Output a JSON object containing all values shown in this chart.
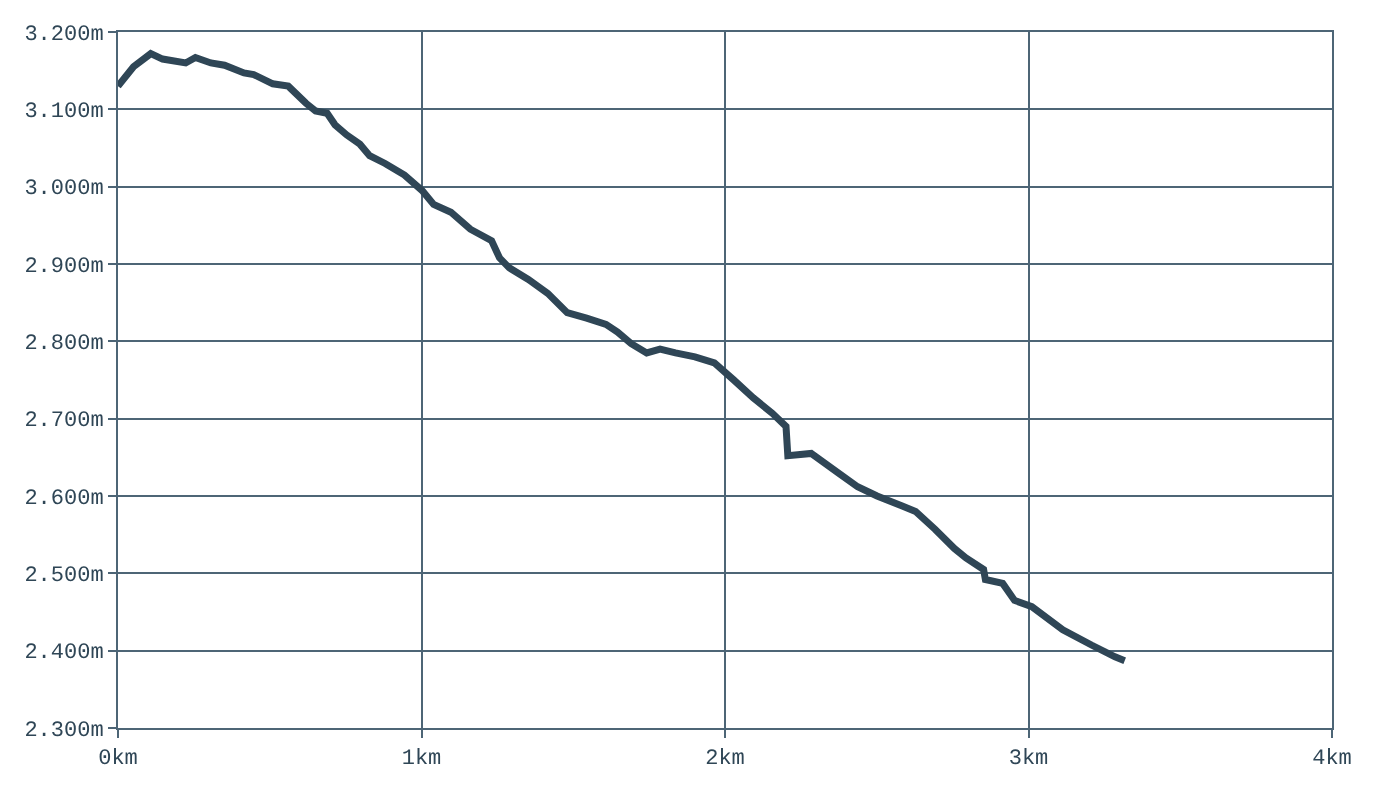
{
  "chart_data": {
    "type": "line",
    "grid": true,
    "marker": "none",
    "line_style": "solid",
    "xlim": [
      0,
      4
    ],
    "xticks": [
      {
        "value": 0,
        "label": "0km"
      },
      {
        "value": 1,
        "label": "1km"
      },
      {
        "value": 2,
        "label": "2km"
      },
      {
        "value": 3,
        "label": "3km"
      },
      {
        "value": 4,
        "label": "4km"
      }
    ],
    "ylim": [
      2.3,
      3.2
    ],
    "yticks": [
      {
        "value": 2.3,
        "label": "2.300m"
      },
      {
        "value": 2.4,
        "label": "2.400m"
      },
      {
        "value": 2.5,
        "label": "2.500m"
      },
      {
        "value": 2.6,
        "label": "2.600m"
      },
      {
        "value": 2.7,
        "label": "2.700m"
      },
      {
        "value": 2.8,
        "label": "2.800m"
      },
      {
        "value": 2.9,
        "label": "2.900m"
      },
      {
        "value": 3.0,
        "label": "3.000m"
      },
      {
        "value": 3.1,
        "label": "3.100m"
      },
      {
        "value": 3.2,
        "label": "3.200m"
      }
    ],
    "x": [
      0,
      0.051,
      0.108,
      0.147,
      0.223,
      0.255,
      0.306,
      0.351,
      0.415,
      0.447,
      0.51,
      0.561,
      0.619,
      0.651,
      0.689,
      0.715,
      0.753,
      0.797,
      0.829,
      0.88,
      0.944,
      1.002,
      1.04,
      1.097,
      1.161,
      1.231,
      1.257,
      1.289,
      1.352,
      1.416,
      1.48,
      1.544,
      1.608,
      1.646,
      1.691,
      1.742,
      1.786,
      1.837,
      1.901,
      1.965,
      2.029,
      2.093,
      2.156,
      2.201,
      2.207,
      2.284,
      2.373,
      2.437,
      2.501,
      2.584,
      2.628,
      2.692,
      2.756,
      2.794,
      2.852,
      2.858,
      2.915,
      2.954,
      3.011,
      3.113,
      3.209,
      3.285,
      3.317
    ],
    "series": [
      {
        "color": "#2f4656",
        "values": [
          3.13,
          3.155,
          3.172,
          3.165,
          3.16,
          3.167,
          3.16,
          3.157,
          3.147,
          3.145,
          3.133,
          3.13,
          3.108,
          3.098,
          3.095,
          3.08,
          3.067,
          3.055,
          3.04,
          3.03,
          3.015,
          2.995,
          2.977,
          2.967,
          2.945,
          2.93,
          2.908,
          2.895,
          2.88,
          2.862,
          2.837,
          2.83,
          2.822,
          2.812,
          2.797,
          2.785,
          2.79,
          2.785,
          2.78,
          2.772,
          2.75,
          2.727,
          2.707,
          2.69,
          2.652,
          2.655,
          2.63,
          2.612,
          2.6,
          2.587,
          2.58,
          2.557,
          2.532,
          2.52,
          2.505,
          2.492,
          2.487,
          2.465,
          2.457,
          2.427,
          2.407,
          2.392,
          2.387
        ]
      }
    ]
  }
}
